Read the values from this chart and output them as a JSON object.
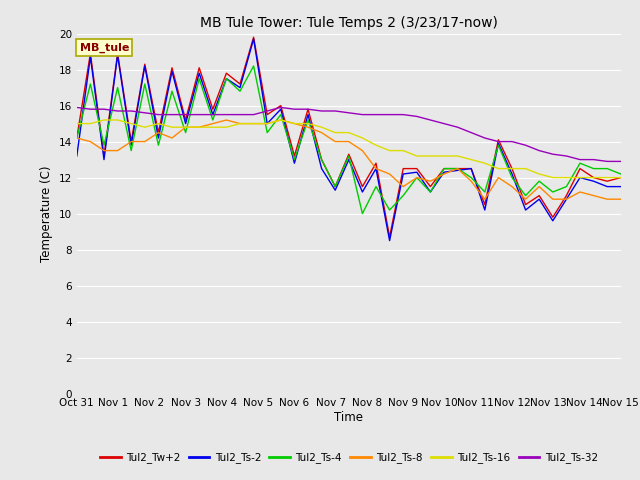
{
  "title": "MB Tule Tower: Tule Temps 2 (3/23/17-now)",
  "xlabel": "Time",
  "ylabel": "Temperature (C)",
  "ylim": [
    0,
    20
  ],
  "yticks": [
    0,
    2,
    4,
    6,
    8,
    10,
    12,
    14,
    16,
    18,
    20
  ],
  "bg_color": "#e8e8e8",
  "legend_label": "MB_tule",
  "series_colors": {
    "Tul2_Tw+2": "#dd0000",
    "Tul2_Ts-2": "#0000ee",
    "Tul2_Ts-4": "#00cc00",
    "Tul2_Ts-8": "#ff8800",
    "Tul2_Ts-16": "#dddd00",
    "Tul2_Ts-32": "#9900bb"
  },
  "xtick_labels": [
    "Oct 31",
    "Nov 1",
    "Nov 2",
    "Nov 3",
    "Nov 4",
    "Nov 5",
    "Nov 6",
    "Nov 7",
    "Nov 8",
    "Nov 9",
    "Nov 10",
    "Nov 11",
    "Nov 12",
    "Nov 13",
    "Nov 14",
    "Nov 15"
  ],
  "Tul2_Tw+2": [
    14.2,
    18.9,
    13.2,
    18.9,
    14.0,
    18.3,
    14.5,
    18.1,
    15.2,
    18.1,
    15.8,
    17.8,
    17.2,
    19.8,
    15.5,
    16.0,
    13.2,
    15.8,
    13.0,
    11.5,
    13.3,
    11.5,
    12.8,
    8.7,
    12.5,
    12.5,
    11.5,
    12.5,
    12.5,
    12.5,
    10.5,
    14.1,
    12.5,
    10.5,
    11.0,
    9.8,
    11.0,
    12.5,
    12.0,
    11.8,
    12.0
  ],
  "Tul2_Ts-2": [
    13.2,
    18.7,
    13.0,
    18.8,
    13.8,
    18.2,
    14.2,
    17.9,
    15.0,
    17.8,
    15.5,
    17.5,
    17.0,
    19.7,
    15.0,
    15.8,
    12.8,
    15.5,
    12.5,
    11.3,
    13.0,
    11.2,
    12.5,
    8.5,
    12.2,
    12.3,
    11.2,
    12.3,
    12.4,
    12.5,
    10.2,
    13.9,
    12.2,
    10.2,
    10.8,
    9.6,
    10.8,
    12.0,
    11.8,
    11.5,
    11.5
  ],
  "Tul2_Ts-4": [
    14.2,
    17.2,
    13.8,
    17.0,
    13.5,
    17.2,
    13.8,
    16.8,
    14.5,
    17.5,
    15.2,
    17.5,
    16.8,
    18.2,
    14.5,
    15.5,
    13.0,
    15.2,
    13.0,
    11.5,
    13.2,
    10.0,
    11.5,
    10.2,
    11.0,
    12.0,
    11.2,
    12.5,
    12.5,
    12.0,
    11.2,
    13.8,
    12.0,
    11.0,
    11.8,
    11.2,
    11.5,
    12.8,
    12.5,
    12.5,
    12.2
  ],
  "Tul2_Ts-8": [
    14.2,
    14.0,
    13.5,
    13.5,
    14.0,
    14.0,
    14.5,
    14.2,
    14.8,
    14.8,
    15.0,
    15.2,
    15.0,
    15.0,
    15.0,
    15.2,
    15.0,
    14.8,
    14.5,
    14.0,
    14.0,
    13.5,
    12.5,
    12.2,
    11.5,
    12.0,
    11.8,
    12.2,
    12.5,
    11.8,
    10.8,
    12.0,
    11.5,
    10.8,
    11.5,
    10.8,
    10.8,
    11.2,
    11.0,
    10.8,
    10.8
  ],
  "Tul2_Ts-16": [
    15.0,
    15.0,
    15.2,
    15.2,
    15.0,
    14.8,
    15.0,
    14.8,
    14.8,
    14.8,
    14.8,
    14.8,
    15.0,
    15.0,
    15.0,
    15.2,
    15.0,
    15.0,
    14.8,
    14.5,
    14.5,
    14.2,
    13.8,
    13.5,
    13.5,
    13.2,
    13.2,
    13.2,
    13.2,
    13.0,
    12.8,
    12.5,
    12.5,
    12.5,
    12.2,
    12.0,
    12.0,
    12.0,
    12.0,
    12.0,
    12.0
  ],
  "Tul2_Ts-32": [
    15.9,
    15.8,
    15.8,
    15.7,
    15.7,
    15.6,
    15.5,
    15.5,
    15.5,
    15.5,
    15.5,
    15.5,
    15.5,
    15.5,
    15.7,
    15.9,
    15.8,
    15.8,
    15.7,
    15.7,
    15.6,
    15.5,
    15.5,
    15.5,
    15.5,
    15.4,
    15.2,
    15.0,
    14.8,
    14.5,
    14.2,
    14.0,
    14.0,
    13.8,
    13.5,
    13.3,
    13.2,
    13.0,
    13.0,
    12.9,
    12.9
  ]
}
